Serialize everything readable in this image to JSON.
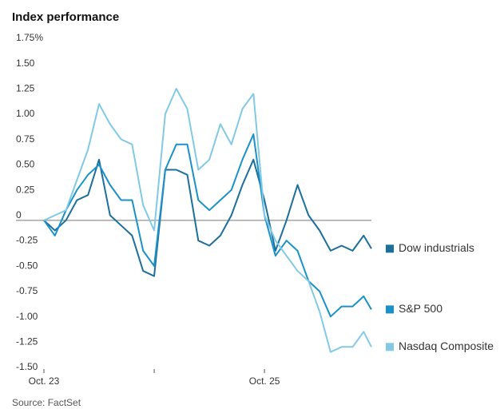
{
  "chart_data": {
    "type": "line",
    "title": "Index performance",
    "source": "Source: FactSet",
    "x": [
      0,
      0.1,
      0.2,
      0.3,
      0.4,
      0.5,
      0.6,
      0.7,
      0.8,
      0.9,
      1.0,
      1.1,
      1.2,
      1.3,
      1.4,
      1.5,
      1.6,
      1.7,
      1.8,
      1.9,
      2.0,
      2.1,
      2.2,
      2.3,
      2.4,
      2.5,
      2.6,
      2.7,
      2.8,
      2.9,
      2.97
    ],
    "xlim": [
      0,
      2.97
    ],
    "xticks": [
      {
        "value": 0,
        "label": "Oct. 23"
      },
      {
        "value": 2,
        "label": "Oct. 25"
      }
    ],
    "minor_xticks": [
      1
    ],
    "ylim": [
      -1.5,
      1.75
    ],
    "yticks": [
      {
        "value": 1.75,
        "label": "1.75%"
      },
      {
        "value": 1.5,
        "label": "1.50"
      },
      1.25,
      {
        "value": 1.0,
        "label": "1.00"
      },
      0.75,
      {
        "value": 0.5,
        "label": "0.50"
      },
      0.25,
      0,
      -0.25,
      {
        "value": -0.5,
        "label": "-0.50"
      },
      -0.75,
      {
        "value": -1.0,
        "label": "-1.00"
      },
      -1.25,
      {
        "value": -1.5,
        "label": "-1.50"
      }
    ],
    "series": [
      {
        "name": "Dow industrials",
        "color": "#1c6f9c",
        "values": [
          0,
          -0.1,
          0,
          0.2,
          0.25,
          0.6,
          0.05,
          -0.05,
          -0.15,
          -0.5,
          -0.55,
          0.5,
          0.5,
          0.45,
          -0.2,
          -0.25,
          -0.15,
          0.05,
          0.35,
          0.6,
          0.2,
          -0.3,
          0,
          0.35,
          0.05,
          -0.1,
          -0.3,
          -0.25,
          -0.3,
          -0.15,
          -0.28
        ]
      },
      {
        "name": "S&P 500",
        "color": "#1a92c9",
        "values": [
          0,
          -0.15,
          0.1,
          0.3,
          0.45,
          0.55,
          0.35,
          0.2,
          0.2,
          -0.3,
          -0.45,
          0.5,
          0.75,
          0.75,
          0.2,
          0.1,
          0.2,
          0.3,
          0.6,
          0.85,
          0.05,
          -0.35,
          -0.2,
          -0.3,
          -0.6,
          -0.7,
          -0.95,
          -0.85,
          -0.85,
          -0.75,
          -0.88
        ]
      },
      {
        "name": "Nasdaq Composite",
        "color": "#82c9e6",
        "values": [
          0,
          0.05,
          0.1,
          0.4,
          0.7,
          1.15,
          0.95,
          0.8,
          0.75,
          0.15,
          -0.1,
          1.05,
          1.3,
          1.1,
          0.5,
          0.6,
          0.95,
          0.75,
          1.1,
          1.25,
          0.05,
          -0.2,
          -0.35,
          -0.5,
          -0.6,
          -0.9,
          -1.3,
          -1.25,
          -1.25,
          -1.1,
          -1.25
        ]
      }
    ]
  }
}
